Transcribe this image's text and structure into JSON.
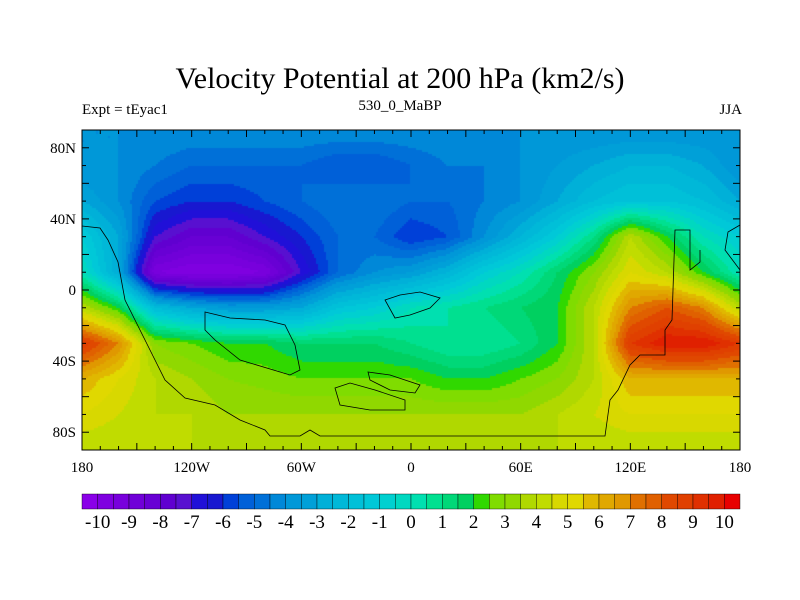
{
  "title": "Velocity Potential at 200 hPa (km2/s)",
  "left_string": "Expt = tEyac1",
  "center_string": "530_0_MaBP",
  "right_string": "JJA",
  "chart_data": {
    "type": "heatmap",
    "title": "Velocity Potential at 200 hPa (km2/s)",
    "units": "km2/s",
    "lon": [
      -180,
      -160,
      -140,
      -120,
      -100,
      -80,
      -60,
      -40,
      -20,
      0,
      20,
      40,
      60,
      80,
      100,
      120,
      140,
      160,
      180
    ],
    "lat": [
      90,
      70,
      50,
      30,
      10,
      -10,
      -30,
      -50,
      -70,
      -90
    ],
    "values": [
      [
        -4,
        -4,
        -4,
        -4,
        -4,
        -4,
        -4,
        -4,
        -4,
        -4,
        -4,
        -4,
        -4,
        -4,
        -4,
        -4,
        -4,
        -4,
        -4
      ],
      [
        -4,
        -4,
        -4.5,
        -5,
        -5,
        -5,
        -5,
        -5.5,
        -5.5,
        -5,
        -4.5,
        -4.5,
        -4,
        -3.5,
        -3,
        -2.5,
        -2.5,
        -3,
        -4
      ],
      [
        -3,
        -4,
        -5.5,
        -6,
        -6,
        -5.5,
        -5,
        -4.5,
        -4.5,
        -5,
        -5,
        -4.5,
        -4,
        -3,
        -2,
        -1.5,
        -1.5,
        -2,
        -3
      ],
      [
        -1,
        -3,
        -7,
        -8,
        -8,
        -7,
        -6,
        -5,
        -5,
        -6,
        -5.5,
        -4,
        -2.5,
        -1,
        1,
        4,
        2,
        0,
        -1
      ],
      [
        0,
        -3,
        -9.5,
        -10,
        -10,
        -9.5,
        -7,
        -5,
        -4,
        -3.5,
        -2.5,
        -1,
        0,
        1.5,
        3,
        5,
        4,
        2,
        0
      ],
      [
        4,
        2,
        -2,
        -3,
        -3.5,
        -3.5,
        -3,
        -1.5,
        -1,
        0,
        0.5,
        1,
        1.5,
        2,
        4,
        7,
        8,
        7,
        4
      ],
      [
        9,
        7,
        3,
        2.5,
        2,
        2,
        1.5,
        1.5,
        1.5,
        1,
        0.5,
        0.5,
        1,
        2,
        4,
        9,
        10,
        10,
        9
      ],
      [
        6,
        5,
        4,
        3.5,
        3,
        2.8,
        2.5,
        2.5,
        2.5,
        2.5,
        2,
        2,
        2.5,
        3,
        4,
        6,
        6,
        6,
        6
      ],
      [
        5,
        4.5,
        4,
        4,
        3.5,
        3.5,
        3.5,
        3.5,
        3.5,
        3.5,
        3.5,
        3.5,
        3.5,
        4,
        4.5,
        5,
        5,
        5,
        5
      ],
      [
        4,
        4,
        4,
        4,
        4,
        4,
        4,
        4,
        4,
        4,
        4,
        4,
        4,
        4,
        4,
        4,
        4,
        4,
        4
      ]
    ],
    "xlim": [
      -180,
      180
    ],
    "ylim": [
      -90,
      90
    ],
    "x_ticks": [
      {
        "v": -180,
        "label": "180"
      },
      {
        "v": -120,
        "label": "120W"
      },
      {
        "v": -60,
        "label": "60W"
      },
      {
        "v": 0,
        "label": "0"
      },
      {
        "v": 60,
        "label": "60E"
      },
      {
        "v": 120,
        "label": "120E"
      },
      {
        "v": 180,
        "label": "180"
      }
    ],
    "y_ticks": [
      {
        "v": 80,
        "label": "80N"
      },
      {
        "v": 40,
        "label": "40N"
      },
      {
        "v": 0,
        "label": "0"
      },
      {
        "v": -40,
        "label": "40S"
      },
      {
        "v": -80,
        "label": "80S"
      }
    ],
    "levels_min": -10,
    "levels_max": 10,
    "level_step": 0.5,
    "colorbar_labels": [
      "-10",
      "-9",
      "-8",
      "-7",
      "-6",
      "-5",
      "-4",
      "-3",
      "-2",
      "-1",
      "0",
      "1",
      "2",
      "3",
      "4",
      "5",
      "6",
      "7",
      "8",
      "9",
      "10"
    ],
    "colors": [
      "#8a00e8",
      "#7f00e0",
      "#7800dc",
      "#7000d8",
      "#6800d4",
      "#6000d0",
      "#5810d0",
      "#2010d8",
      "#1818d0",
      "#0040d8",
      "#0060d8",
      "#0070d8",
      "#0088d8",
      "#0098d8",
      "#00a0d8",
      "#00b0d8",
      "#00b8d8",
      "#00c0d8",
      "#00c8d8",
      "#00d0d0",
      "#00d8c0",
      "#00e0b0",
      "#00e090",
      "#00d878",
      "#00d060",
      "#30d800",
      "#80dc00",
      "#90d800",
      "#b0d800",
      "#c0dc00",
      "#d8d800",
      "#e0d800",
      "#e0b800",
      "#e0a800",
      "#e09800",
      "#e07000",
      "#e06000",
      "#e04800",
      "#e04000",
      "#e03000",
      "#e02000",
      "#e80000"
    ]
  }
}
